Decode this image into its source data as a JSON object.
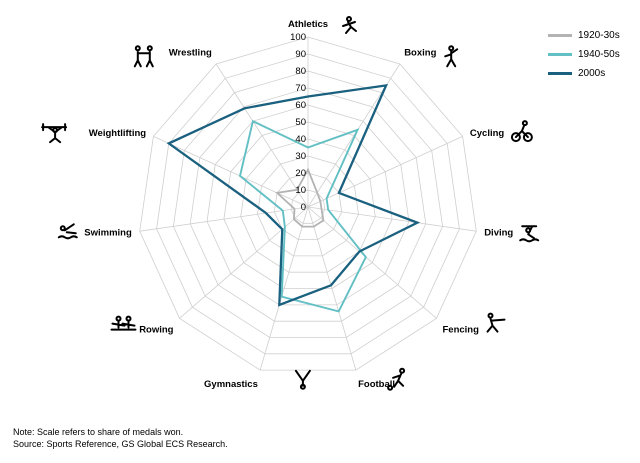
{
  "chart_data": {
    "type": "radar",
    "title": "",
    "categories": [
      "Athletics",
      "Boxing",
      "Cycling",
      "Diving",
      "Fencing",
      "Football",
      "Gymnastics",
      "Rowing",
      "Swimming",
      "Weightlifting",
      "Wrestling"
    ],
    "category_icons": [
      "runner-icon",
      "boxer-icon",
      "cyclist-icon",
      "diver-icon",
      "fencer-icon",
      "footballer-icon",
      "gymnast-icon",
      "rowers-icon",
      "swimmer-icon",
      "weightlifter-icon",
      "wrestlers-icon"
    ],
    "tick_labels": [
      "0",
      "10",
      "20",
      "30",
      "40",
      "50",
      "60",
      "70",
      "80",
      "90",
      "100"
    ],
    "rlim": [
      0,
      100
    ],
    "grid": true,
    "legend_position": "top-right",
    "series": [
      {
        "name": "1920-30s",
        "color": "#b3b3b3",
        "values": [
          22,
          10,
          8,
          8,
          12,
          12,
          12,
          11,
          8,
          20,
          12
        ]
      },
      {
        "name": "1940-50s",
        "color": "#62bfc3",
        "values": [
          35,
          54,
          12,
          12,
          45,
          64,
          55,
          18,
          15,
          44,
          60
        ]
      },
      {
        "name": "2000s",
        "color": "#1a607f",
        "values": [
          65,
          85,
          20,
          65,
          40,
          48,
          60,
          20,
          25,
          90,
          69
        ]
      }
    ]
  },
  "footnotes": {
    "note": "Note: Scale refers to share of medals won.",
    "source": "Source: Sports Reference, GS Global ECS Research."
  }
}
